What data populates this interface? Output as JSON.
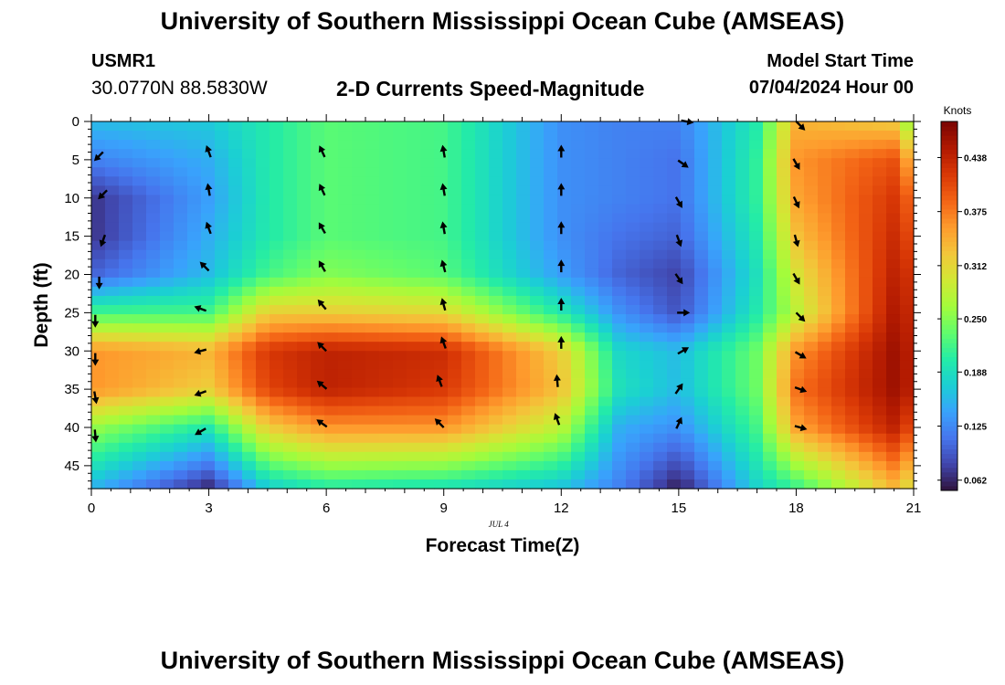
{
  "header": {
    "title": "University of Southern Mississippi Ocean Cube (AMSEAS)",
    "station_id": "USMR1",
    "station_coords": "30.0770N  88.5830W",
    "plot_title": "2-D Currents Speed-Magnitude",
    "model_start_label": "Model Start Time",
    "model_start_value": "07/04/2024 Hour 00"
  },
  "footer": {
    "title": "University of Southern Mississippi Ocean Cube (AMSEAS)"
  },
  "chart_data": {
    "type": "heatmap",
    "title": "2-D Currents Speed-Magnitude",
    "xlabel": "Forecast Time(Z)",
    "ylabel": "Depth (ft)",
    "x_ticks": [
      "0",
      "3",
      "6",
      "9",
      "12",
      "15",
      "18",
      "21"
    ],
    "y_ticks": [
      "0",
      "5",
      "10",
      "15",
      "20",
      "25",
      "30",
      "35",
      "40",
      "45"
    ],
    "xlim": [
      0,
      21
    ],
    "ylim": [
      48,
      0
    ],
    "date_label": "JUL 4",
    "colorbar": {
      "title": "Knots",
      "ticks": [
        "0.062",
        "0.125",
        "0.188",
        "0.250",
        "0.312",
        "0.375",
        "0.438"
      ],
      "range": [
        0.05,
        0.48
      ]
    },
    "colormap": [
      "#30123b",
      "#4145ab",
      "#4675ed",
      "#39a2fc",
      "#1bcfd4",
      "#24eca6",
      "#61fc6c",
      "#a4fc3b",
      "#d1e834",
      "#f3c63a",
      "#fe9b2d",
      "#f36315",
      "#d93806",
      "#b11901",
      "#7a0402"
    ],
    "arrow_color": "#000000",
    "series": [
      {
        "name": "col_00.0",
        "x": 0.0,
        "values": [
          0.16,
          0.12,
          0.07,
          0.07,
          0.1,
          0.22,
          0.36,
          0.36,
          0.26,
          0.16
        ]
      },
      {
        "name": "col_03.0",
        "x": 3.0,
        "values": [
          0.17,
          0.15,
          0.14,
          0.15,
          0.16,
          0.22,
          0.34,
          0.32,
          0.2,
          0.07
        ]
      },
      {
        "name": "col_04.5",
        "x": 4.5,
        "values": [
          0.2,
          0.2,
          0.2,
          0.2,
          0.22,
          0.32,
          0.42,
          0.41,
          0.32,
          0.18
        ]
      },
      {
        "name": "col_06.0",
        "x": 6.0,
        "values": [
          0.23,
          0.23,
          0.23,
          0.23,
          0.25,
          0.32,
          0.44,
          0.44,
          0.36,
          0.21
        ]
      },
      {
        "name": "col_09.0",
        "x": 9.0,
        "values": [
          0.22,
          0.22,
          0.22,
          0.22,
          0.23,
          0.31,
          0.43,
          0.42,
          0.36,
          0.2
        ]
      },
      {
        "name": "col_12.0",
        "x": 12.0,
        "values": [
          0.13,
          0.13,
          0.13,
          0.13,
          0.14,
          0.2,
          0.32,
          0.33,
          0.28,
          0.17
        ]
      },
      {
        "name": "col_13.5",
        "x": 13.5,
        "values": [
          0.12,
          0.12,
          0.12,
          0.11,
          0.1,
          0.13,
          0.18,
          0.19,
          0.15,
          0.12
        ]
      },
      {
        "name": "col_15.0",
        "x": 15.0,
        "values": [
          0.12,
          0.11,
          0.11,
          0.1,
          0.08,
          0.09,
          0.16,
          0.16,
          0.13,
          0.06
        ]
      },
      {
        "name": "col_17.0",
        "x": 17.0,
        "values": [
          0.2,
          0.21,
          0.21,
          0.2,
          0.19,
          0.2,
          0.24,
          0.24,
          0.22,
          0.18
        ]
      },
      {
        "name": "col_18.0",
        "x": 18.0,
        "values": [
          0.34,
          0.36,
          0.35,
          0.33,
          0.3,
          0.28,
          0.36,
          0.38,
          0.35,
          0.22
        ]
      },
      {
        "name": "col_20.5",
        "x": 20.5,
        "values": [
          0.32,
          0.4,
          0.42,
          0.43,
          0.44,
          0.45,
          0.46,
          0.46,
          0.44,
          0.34
        ]
      },
      {
        "name": "col_21.0",
        "x": 21.0,
        "values": [
          0.24,
          0.33,
          0.38,
          0.4,
          0.42,
          0.43,
          0.44,
          0.44,
          0.4,
          0.3
        ]
      }
    ],
    "grid_depths": [
      0,
      5,
      10,
      15,
      20,
      25,
      30,
      35,
      40,
      47.5
    ],
    "arrows": [
      {
        "t": 0.2,
        "depth": 4.5,
        "dir": 225
      },
      {
        "t": 0.3,
        "depth": 9.5,
        "dir": 225
      },
      {
        "t": 0.3,
        "depth": 15.5,
        "dir": 200
      },
      {
        "t": 0.2,
        "depth": 21.0,
        "dir": 180
      },
      {
        "t": 0.1,
        "depth": 26.0,
        "dir": 180
      },
      {
        "t": 0.1,
        "depth": 31.0,
        "dir": 180
      },
      {
        "t": 0.1,
        "depth": 36.0,
        "dir": 170
      },
      {
        "t": 0.1,
        "depth": 41.0,
        "dir": 175
      },
      {
        "t": 3.0,
        "depth": 4.0,
        "dir": 340
      },
      {
        "t": 3.0,
        "depth": 9.0,
        "dir": 350
      },
      {
        "t": 3.0,
        "depth": 14.0,
        "dir": 340
      },
      {
        "t": 2.9,
        "depth": 19.0,
        "dir": 315
      },
      {
        "t": 2.8,
        "depth": 24.5,
        "dir": 290
      },
      {
        "t": 2.8,
        "depth": 30.0,
        "dir": 255
      },
      {
        "t": 2.8,
        "depth": 35.5,
        "dir": 250
      },
      {
        "t": 2.8,
        "depth": 40.5,
        "dir": 240
      },
      {
        "t": 5.9,
        "depth": 4.0,
        "dir": 335
      },
      {
        "t": 5.9,
        "depth": 9.0,
        "dir": 335
      },
      {
        "t": 5.9,
        "depth": 14.0,
        "dir": 330
      },
      {
        "t": 5.9,
        "depth": 19.0,
        "dir": 330
      },
      {
        "t": 5.9,
        "depth": 24.0,
        "dir": 320
      },
      {
        "t": 5.9,
        "depth": 29.5,
        "dir": 315
      },
      {
        "t": 5.9,
        "depth": 34.5,
        "dir": 310
      },
      {
        "t": 5.9,
        "depth": 39.5,
        "dir": 305
      },
      {
        "t": 9.0,
        "depth": 4.0,
        "dir": 350
      },
      {
        "t": 9.0,
        "depth": 9.0,
        "dir": 350
      },
      {
        "t": 9.0,
        "depth": 14.0,
        "dir": 350
      },
      {
        "t": 9.0,
        "depth": 19.0,
        "dir": 345
      },
      {
        "t": 9.0,
        "depth": 24.0,
        "dir": 345
      },
      {
        "t": 9.0,
        "depth": 29.0,
        "dir": 340
      },
      {
        "t": 8.9,
        "depth": 34.0,
        "dir": 340
      },
      {
        "t": 8.9,
        "depth": 39.5,
        "dir": 315
      },
      {
        "t": 12.0,
        "depth": 4.0,
        "dir": 0
      },
      {
        "t": 12.0,
        "depth": 9.0,
        "dir": 0
      },
      {
        "t": 12.0,
        "depth": 14.0,
        "dir": 0
      },
      {
        "t": 12.0,
        "depth": 19.0,
        "dir": 0
      },
      {
        "t": 12.0,
        "depth": 24.0,
        "dir": 0
      },
      {
        "t": 12.0,
        "depth": 29.0,
        "dir": 0
      },
      {
        "t": 11.9,
        "depth": 34.0,
        "dir": 355
      },
      {
        "t": 11.9,
        "depth": 39.0,
        "dir": 340
      },
      {
        "t": 15.2,
        "depth": 0.0,
        "dir": 100
      },
      {
        "t": 15.1,
        "depth": 5.5,
        "dir": 125
      },
      {
        "t": 15.0,
        "depth": 10.5,
        "dir": 150
      },
      {
        "t": 15.0,
        "depth": 15.5,
        "dir": 160
      },
      {
        "t": 15.0,
        "depth": 20.5,
        "dir": 145
      },
      {
        "t": 15.1,
        "depth": 25.0,
        "dir": 90
      },
      {
        "t": 15.1,
        "depth": 30.0,
        "dir": 60
      },
      {
        "t": 15.0,
        "depth": 35.0,
        "dir": 35
      },
      {
        "t": 15.0,
        "depth": 39.5,
        "dir": 25
      },
      {
        "t": 18.1,
        "depth": 0.5,
        "dir": 135
      },
      {
        "t": 18.0,
        "depth": 5.5,
        "dir": 150
      },
      {
        "t": 18.0,
        "depth": 10.5,
        "dir": 155
      },
      {
        "t": 18.0,
        "depth": 15.5,
        "dir": 165
      },
      {
        "t": 18.0,
        "depth": 20.5,
        "dir": 150
      },
      {
        "t": 18.1,
        "depth": 25.5,
        "dir": 135
      },
      {
        "t": 18.1,
        "depth": 30.5,
        "dir": 120
      },
      {
        "t": 18.1,
        "depth": 35.0,
        "dir": 110
      },
      {
        "t": 18.1,
        "depth": 40.0,
        "dir": 105
      }
    ]
  }
}
